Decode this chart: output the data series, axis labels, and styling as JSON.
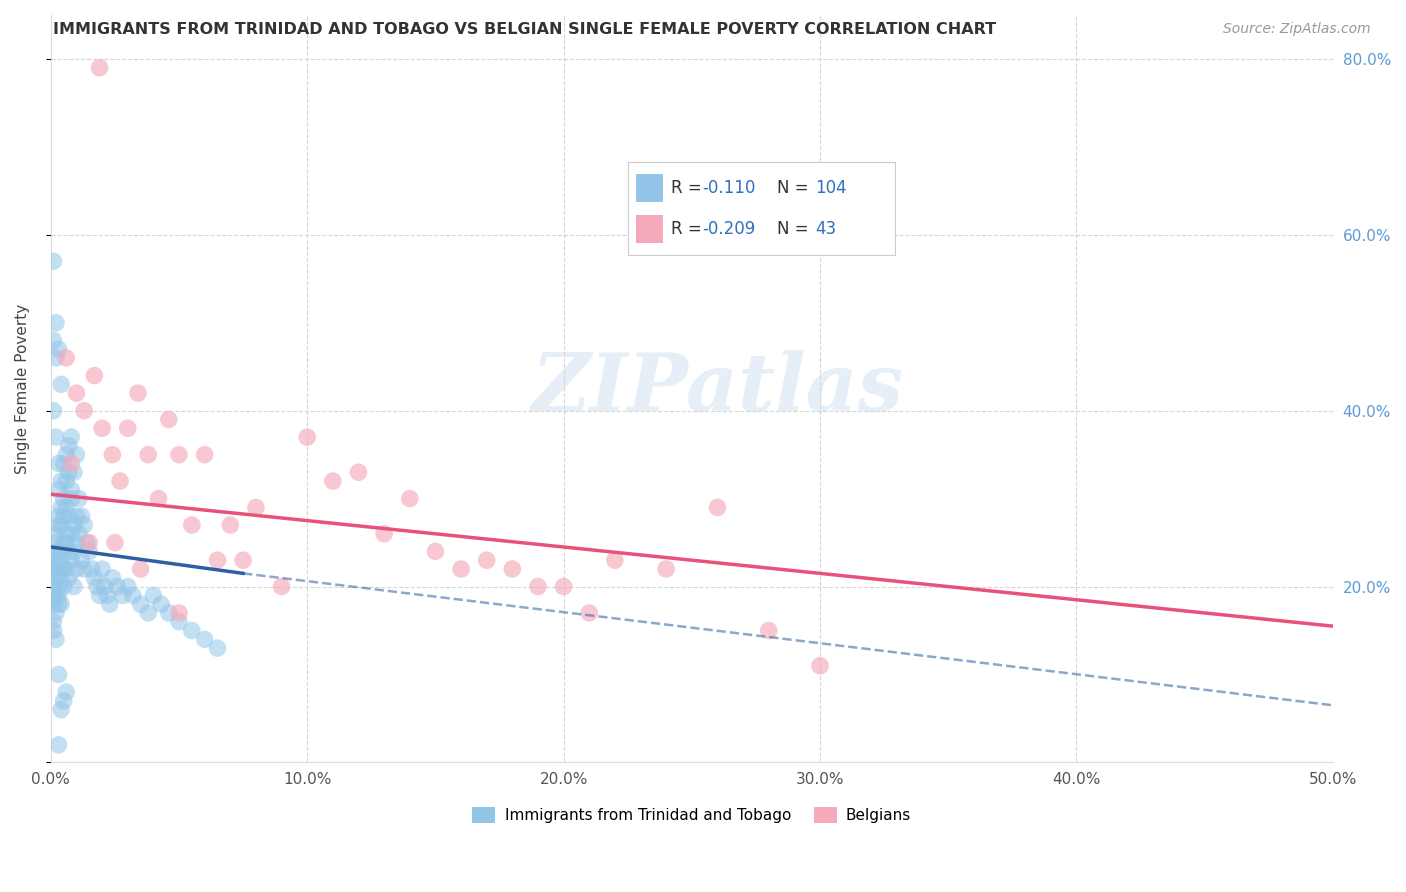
{
  "title": "IMMIGRANTS FROM TRINIDAD AND TOBAGO VS BELGIAN SINGLE FEMALE POVERTY CORRELATION CHART",
  "source": "Source: ZipAtlas.com",
  "ylabel": "Single Female Poverty",
  "legend_label_blue": "Immigrants from Trinidad and Tobago",
  "legend_label_pink": "Belgians",
  "R_blue": -0.11,
  "N_blue": 104,
  "R_pink": -0.209,
  "N_pink": 43,
  "xlim": [
    0.0,
    0.5
  ],
  "ylim": [
    0.0,
    0.85
  ],
  "xticks": [
    0.0,
    0.1,
    0.2,
    0.3,
    0.4,
    0.5
  ],
  "yticks": [
    0.0,
    0.2,
    0.4,
    0.6,
    0.8
  ],
  "color_blue": "#92C5E8",
  "color_pink": "#F4AABB",
  "color_trend_blue": "#2E5FA3",
  "color_trend_pink": "#E8527A",
  "color_grid": "#CCCCCC",
  "watermark": "ZIPatlas",
  "blue_trend_start_x": 0.0,
  "blue_trend_start_y": 0.245,
  "blue_trend_end_solid_x": 0.075,
  "blue_trend_end_solid_y": 0.215,
  "blue_trend_end_dash_x": 0.5,
  "blue_trend_end_dash_y": 0.065,
  "pink_trend_start_x": 0.0,
  "pink_trend_start_y": 0.305,
  "pink_trend_end_x": 0.5,
  "pink_trend_end_y": 0.155,
  "scatter_blue_x": [
    0.001,
    0.001,
    0.001,
    0.001,
    0.001,
    0.001,
    0.001,
    0.002,
    0.002,
    0.002,
    0.002,
    0.002,
    0.002,
    0.002,
    0.002,
    0.003,
    0.003,
    0.003,
    0.003,
    0.003,
    0.003,
    0.003,
    0.003,
    0.004,
    0.004,
    0.004,
    0.004,
    0.004,
    0.004,
    0.004,
    0.005,
    0.005,
    0.005,
    0.005,
    0.005,
    0.005,
    0.006,
    0.006,
    0.006,
    0.006,
    0.006,
    0.006,
    0.007,
    0.007,
    0.007,
    0.007,
    0.007,
    0.008,
    0.008,
    0.008,
    0.008,
    0.008,
    0.009,
    0.009,
    0.009,
    0.009,
    0.01,
    0.01,
    0.01,
    0.01,
    0.011,
    0.011,
    0.012,
    0.012,
    0.013,
    0.013,
    0.014,
    0.015,
    0.016,
    0.017,
    0.018,
    0.019,
    0.02,
    0.021,
    0.022,
    0.023,
    0.024,
    0.026,
    0.028,
    0.03,
    0.032,
    0.035,
    0.038,
    0.04,
    0.043,
    0.046,
    0.05,
    0.055,
    0.06,
    0.065,
    0.001,
    0.002,
    0.003,
    0.004,
    0.001,
    0.002,
    0.003,
    0.001,
    0.002,
    0.004,
    0.005,
    0.006,
    0.003,
    0.003
  ],
  "scatter_blue_y": [
    0.18,
    0.22,
    0.24,
    0.19,
    0.2,
    0.16,
    0.15,
    0.23,
    0.25,
    0.21,
    0.19,
    0.17,
    0.22,
    0.26,
    0.14,
    0.28,
    0.24,
    0.22,
    0.19,
    0.27,
    0.2,
    0.31,
    0.18,
    0.32,
    0.27,
    0.24,
    0.21,
    0.29,
    0.23,
    0.18,
    0.34,
    0.28,
    0.25,
    0.22,
    0.3,
    0.2,
    0.35,
    0.29,
    0.25,
    0.32,
    0.22,
    0.26,
    0.36,
    0.28,
    0.33,
    0.24,
    0.21,
    0.37,
    0.3,
    0.26,
    0.23,
    0.31,
    0.33,
    0.27,
    0.24,
    0.2,
    0.35,
    0.28,
    0.25,
    0.22,
    0.3,
    0.26,
    0.28,
    0.23,
    0.27,
    0.22,
    0.25,
    0.24,
    0.22,
    0.21,
    0.2,
    0.19,
    0.22,
    0.2,
    0.19,
    0.18,
    0.21,
    0.2,
    0.19,
    0.2,
    0.19,
    0.18,
    0.17,
    0.19,
    0.18,
    0.17,
    0.16,
    0.15,
    0.14,
    0.13,
    0.57,
    0.5,
    0.47,
    0.43,
    0.4,
    0.37,
    0.34,
    0.48,
    0.46,
    0.06,
    0.07,
    0.08,
    0.1,
    0.02
  ],
  "scatter_pink_x": [
    0.019,
    0.006,
    0.01,
    0.013,
    0.017,
    0.02,
    0.024,
    0.027,
    0.03,
    0.034,
    0.038,
    0.042,
    0.046,
    0.05,
    0.055,
    0.06,
    0.065,
    0.07,
    0.075,
    0.08,
    0.09,
    0.1,
    0.11,
    0.12,
    0.13,
    0.14,
    0.15,
    0.16,
    0.17,
    0.18,
    0.19,
    0.2,
    0.21,
    0.22,
    0.24,
    0.26,
    0.28,
    0.3,
    0.008,
    0.015,
    0.025,
    0.035,
    0.05
  ],
  "scatter_pink_y": [
    0.79,
    0.46,
    0.42,
    0.4,
    0.44,
    0.38,
    0.35,
    0.32,
    0.38,
    0.42,
    0.35,
    0.3,
    0.39,
    0.35,
    0.27,
    0.35,
    0.23,
    0.27,
    0.23,
    0.29,
    0.2,
    0.37,
    0.32,
    0.33,
    0.26,
    0.3,
    0.24,
    0.22,
    0.23,
    0.22,
    0.2,
    0.2,
    0.17,
    0.23,
    0.22,
    0.29,
    0.15,
    0.11,
    0.34,
    0.25,
    0.25,
    0.22,
    0.17
  ]
}
